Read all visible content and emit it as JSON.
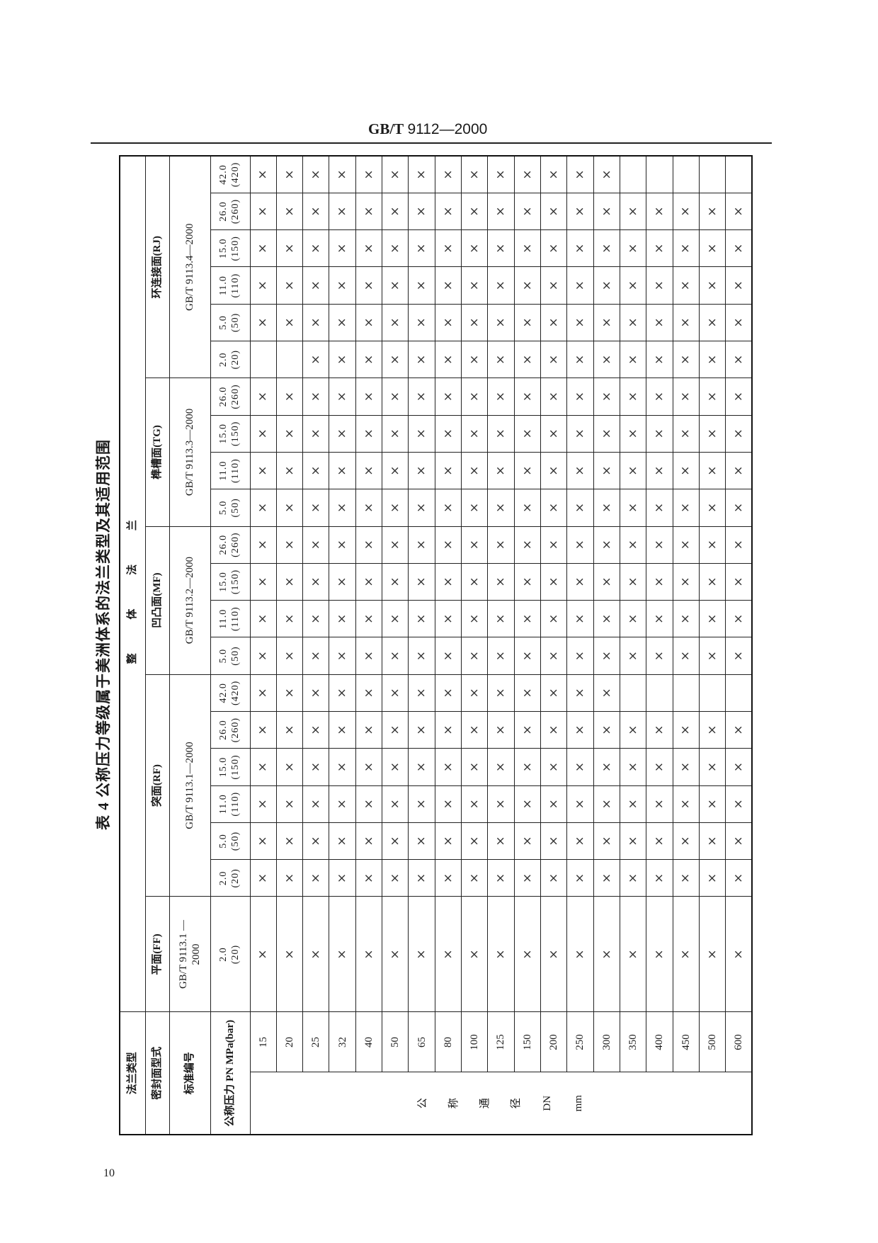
{
  "header": {
    "std_prefix": "GB/T",
    "std_number": "9112—2000"
  },
  "table": {
    "title": "表 4  公称压力等级属于美洲体系的法兰类型及其适用范围",
    "row_labels": {
      "flange_type": "法兰类型",
      "sealing_face": "密封面型式",
      "standard_no": "标准编号",
      "pressure": "公称压力 PN MPa(bar)"
    },
    "flange_type_value": "整 体 法 兰",
    "dn_label": [
      "公",
      "称",
      "通",
      "径",
      "DN",
      "mm"
    ],
    "faces": [
      {
        "name": "平面(FF)",
        "standard": "GB/T 9113.1 —2000",
        "pressures": [
          [
            "2.0",
            "(20)"
          ]
        ]
      },
      {
        "name": "突面(RF)",
        "standard": "GB/T 9113.1—2000",
        "pressures": [
          [
            "2.0",
            "(20)"
          ],
          [
            "5.0",
            "(50)"
          ],
          [
            "11.0",
            "(110)"
          ],
          [
            "15.0",
            "(150)"
          ],
          [
            "26.0",
            "(260)"
          ],
          [
            "42.0",
            "(420)"
          ]
        ]
      },
      {
        "name": "凹凸面(MF)",
        "standard": "GB/T 9113.2—2000",
        "pressures": [
          [
            "5.0",
            "(50)"
          ],
          [
            "11.0",
            "(110)"
          ],
          [
            "15.0",
            "(150)"
          ],
          [
            "26.0",
            "(260)"
          ]
        ]
      },
      {
        "name": "榫槽面(TG)",
        "standard": "GB/T 9113.3—2000",
        "pressures": [
          [
            "5.0",
            "(50)"
          ],
          [
            "11.0",
            "(110)"
          ],
          [
            "15.0",
            "(150)"
          ],
          [
            "26.0",
            "(260)"
          ]
        ]
      },
      {
        "name": "环连接面(RJ)",
        "standard": "GB/T 9113.4—2000",
        "pressures": [
          [
            "2.0",
            "(20)"
          ],
          [
            "5.0",
            "(50)"
          ],
          [
            "11.0",
            "(110)"
          ],
          [
            "15.0",
            "(150)"
          ],
          [
            "26.0",
            "(260)"
          ],
          [
            "42.0",
            "(420)"
          ]
        ]
      }
    ],
    "rows": [
      {
        "dn": "15",
        "marks": [
          "×",
          "×",
          "×",
          "×",
          "×",
          "×",
          "×",
          "×",
          "×",
          "×",
          "×",
          "×",
          "×",
          "×",
          "×",
          "",
          "×",
          "×",
          "×",
          "×",
          "×"
        ]
      },
      {
        "dn": "20",
        "marks": [
          "×",
          "×",
          "×",
          "×",
          "×",
          "×",
          "×",
          "×",
          "×",
          "×",
          "×",
          "×",
          "×",
          "×",
          "×",
          "",
          "×",
          "×",
          "×",
          "×",
          "×"
        ]
      },
      {
        "dn": "25",
        "marks": [
          "×",
          "×",
          "×",
          "×",
          "×",
          "×",
          "×",
          "×",
          "×",
          "×",
          "×",
          "×",
          "×",
          "×",
          "×",
          "×",
          "×",
          "×",
          "×",
          "×",
          "×"
        ]
      },
      {
        "dn": "32",
        "marks": [
          "×",
          "×",
          "×",
          "×",
          "×",
          "×",
          "×",
          "×",
          "×",
          "×",
          "×",
          "×",
          "×",
          "×",
          "×",
          "×",
          "×",
          "×",
          "×",
          "×",
          "×"
        ]
      },
      {
        "dn": "40",
        "marks": [
          "×",
          "×",
          "×",
          "×",
          "×",
          "×",
          "×",
          "×",
          "×",
          "×",
          "×",
          "×",
          "×",
          "×",
          "×",
          "×",
          "×",
          "×",
          "×",
          "×",
          "×"
        ]
      },
      {
        "dn": "50",
        "marks": [
          "×",
          "×",
          "×",
          "×",
          "×",
          "×",
          "×",
          "×",
          "×",
          "×",
          "×",
          "×",
          "×",
          "×",
          "×",
          "×",
          "×",
          "×",
          "×",
          "×",
          "×"
        ]
      },
      {
        "dn": "65",
        "marks": [
          "×",
          "×",
          "×",
          "×",
          "×",
          "×",
          "×",
          "×",
          "×",
          "×",
          "×",
          "×",
          "×",
          "×",
          "×",
          "×",
          "×",
          "×",
          "×",
          "×",
          "×"
        ]
      },
      {
        "dn": "80",
        "marks": [
          "×",
          "×",
          "×",
          "×",
          "×",
          "×",
          "×",
          "×",
          "×",
          "×",
          "×",
          "×",
          "×",
          "×",
          "×",
          "×",
          "×",
          "×",
          "×",
          "×",
          "×"
        ]
      },
      {
        "dn": "100",
        "marks": [
          "×",
          "×",
          "×",
          "×",
          "×",
          "×",
          "×",
          "×",
          "×",
          "×",
          "×",
          "×",
          "×",
          "×",
          "×",
          "×",
          "×",
          "×",
          "×",
          "×",
          "×"
        ]
      },
      {
        "dn": "125",
        "marks": [
          "×",
          "×",
          "×",
          "×",
          "×",
          "×",
          "×",
          "×",
          "×",
          "×",
          "×",
          "×",
          "×",
          "×",
          "×",
          "×",
          "×",
          "×",
          "×",
          "×",
          "×"
        ]
      },
      {
        "dn": "150",
        "marks": [
          "×",
          "×",
          "×",
          "×",
          "×",
          "×",
          "×",
          "×",
          "×",
          "×",
          "×",
          "×",
          "×",
          "×",
          "×",
          "×",
          "×",
          "×",
          "×",
          "×",
          "×"
        ]
      },
      {
        "dn": "200",
        "marks": [
          "×",
          "×",
          "×",
          "×",
          "×",
          "×",
          "×",
          "×",
          "×",
          "×",
          "×",
          "×",
          "×",
          "×",
          "×",
          "×",
          "×",
          "×",
          "×",
          "×",
          "×"
        ]
      },
      {
        "dn": "250",
        "marks": [
          "×",
          "×",
          "×",
          "×",
          "×",
          "×",
          "×",
          "×",
          "×",
          "×",
          "×",
          "×",
          "×",
          "×",
          "×",
          "×",
          "×",
          "×",
          "×",
          "×",
          "×"
        ]
      },
      {
        "dn": "300",
        "marks": [
          "×",
          "×",
          "×",
          "×",
          "×",
          "×",
          "×",
          "×",
          "×",
          "×",
          "×",
          "×",
          "×",
          "×",
          "×",
          "×",
          "×",
          "×",
          "×",
          "×",
          "×"
        ]
      },
      {
        "dn": "350",
        "marks": [
          "×",
          "×",
          "×",
          "×",
          "×",
          "×",
          "",
          "×",
          "×",
          "×",
          "×",
          "×",
          "×",
          "×",
          "×",
          "×",
          "×",
          "×",
          "×",
          "×",
          ""
        ]
      },
      {
        "dn": "400",
        "marks": [
          "×",
          "×",
          "×",
          "×",
          "×",
          "×",
          "",
          "×",
          "×",
          "×",
          "×",
          "×",
          "×",
          "×",
          "×",
          "×",
          "×",
          "×",
          "×",
          "×",
          ""
        ]
      },
      {
        "dn": "450",
        "marks": [
          "×",
          "×",
          "×",
          "×",
          "×",
          "×",
          "",
          "×",
          "×",
          "×",
          "×",
          "×",
          "×",
          "×",
          "×",
          "×",
          "×",
          "×",
          "×",
          "×",
          ""
        ]
      },
      {
        "dn": "500",
        "marks": [
          "×",
          "×",
          "×",
          "×",
          "×",
          "×",
          "",
          "×",
          "×",
          "×",
          "×",
          "×",
          "×",
          "×",
          "×",
          "×",
          "×",
          "×",
          "×",
          "×",
          ""
        ]
      },
      {
        "dn": "600",
        "marks": [
          "×",
          "×",
          "×",
          "×",
          "×",
          "×",
          "",
          "×",
          "×",
          "×",
          "×",
          "×",
          "×",
          "×",
          "×",
          "×",
          "×",
          "×",
          "×",
          "×",
          ""
        ]
      }
    ]
  },
  "footer": {
    "page_number": "10"
  }
}
